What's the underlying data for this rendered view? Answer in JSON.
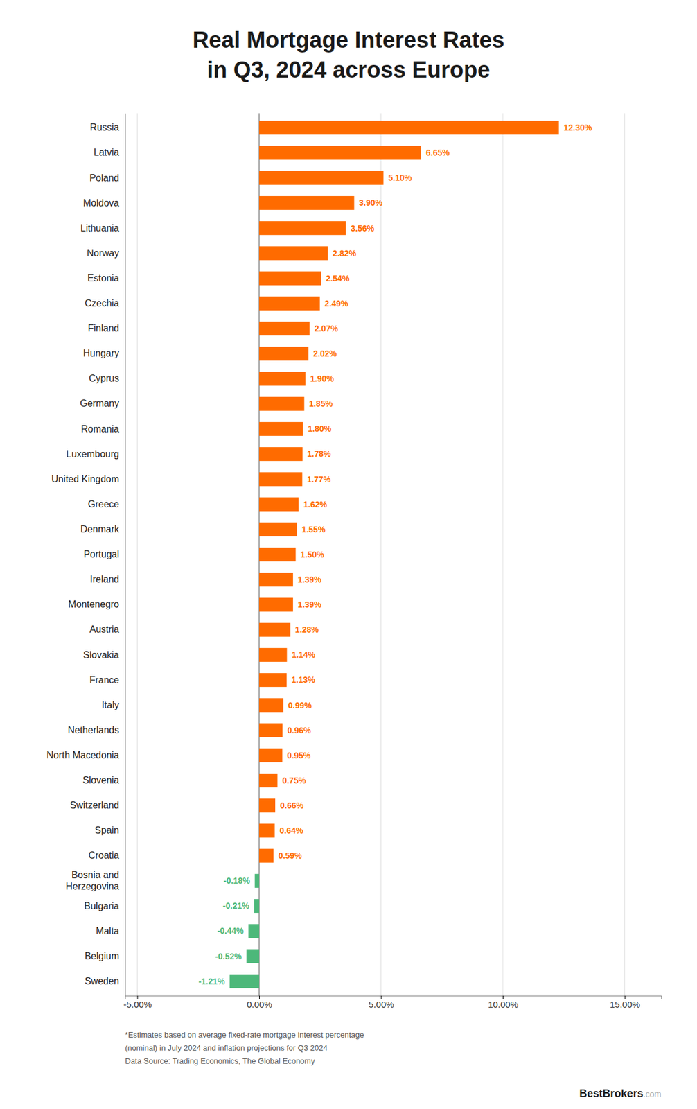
{
  "chart_data": {
    "type": "bar",
    "orientation": "horizontal",
    "title": "Real Mortgage Interest Rates",
    "subtitle": "in Q3, 2024 across Europe",
    "categories": [
      "Russia",
      "Latvia",
      "Poland",
      "Moldova",
      "Lithuania",
      "Norway",
      "Estonia",
      "Czechia",
      "Finland",
      "Hungary",
      "Cyprus",
      "Germany",
      "Romania",
      "Luxembourg",
      "United Kingdom",
      "Greece",
      "Denmark",
      "Portugal",
      "Ireland",
      "Montenegro",
      "Austria",
      "Slovakia",
      "France",
      "Italy",
      "Netherlands",
      "North Macedonia",
      "Slovenia",
      "Switzerland",
      "Spain",
      "Croatia",
      "Bosnia and\nHerzegovina",
      "Bulgaria",
      "Malta",
      "Belgium",
      "Sweden"
    ],
    "values": [
      12.3,
      6.65,
      5.1,
      3.9,
      3.56,
      2.82,
      2.54,
      2.49,
      2.07,
      2.02,
      1.9,
      1.85,
      1.8,
      1.78,
      1.77,
      1.62,
      1.55,
      1.5,
      1.39,
      1.39,
      1.28,
      1.14,
      1.13,
      0.99,
      0.96,
      0.95,
      0.75,
      0.66,
      0.64,
      0.59,
      -0.18,
      -0.21,
      -0.44,
      -0.52,
      -1.21
    ],
    "value_labels": [
      "12.30%",
      "6.65%",
      "5.10%",
      "3.90%",
      "3.56%",
      "2.82%",
      "2.54%",
      "2.49%",
      "2.07%",
      "2.02%",
      "1.90%",
      "1.85%",
      "1.80%",
      "1.78%",
      "1.77%",
      "1.62%",
      "1.55%",
      "1.50%",
      "1.39%",
      "1.39%",
      "1.28%",
      "1.14%",
      "1.13%",
      "0.99%",
      "0.96%",
      "0.95%",
      "0.75%",
      "0.66%",
      "0.64%",
      "0.59%",
      "-0.18%",
      "-0.21%",
      "-0.44%",
      "-0.52%",
      "-1.21%"
    ],
    "colors": [
      "#FF6B00",
      "#FF6B00",
      "#FF6B00",
      "#FF6B00",
      "#FF6B00",
      "#FF6B00",
      "#FF6B00",
      "#FF6B00",
      "#FF6B00",
      "#FF6B00",
      "#FF6B00",
      "#FF6B00",
      "#FF6B00",
      "#FF6B00",
      "#FF6B00",
      "#FF6B00",
      "#FF6B00",
      "#FF6B00",
      "#FF6B00",
      "#FF6B00",
      "#FF6B00",
      "#FF6B00",
      "#FF6B00",
      "#FF6B00",
      "#FF6B00",
      "#FF6B00",
      "#FF6B00",
      "#FF6B00",
      "#FF6B00",
      "#FF6B00",
      "#4DB87A",
      "#4DB87A",
      "#4DB87A",
      "#4DB87A",
      "#4DB87A"
    ],
    "data_labels": true,
    "xlim": [
      -5.5,
      16.5
    ],
    "xticks": [
      {
        "value": -5,
        "label": "-5.00%"
      },
      {
        "value": 0,
        "label": "0.00%"
      },
      {
        "value": 5,
        "label": "5.00%"
      },
      {
        "value": 10,
        "label": "10.00%"
      },
      {
        "value": 15,
        "label": "15.00%"
      }
    ],
    "grid": true,
    "annotations": [
      "*Estimates based on average fixed-rate mortgage interest percentage",
      "(nominal) in July 2024 and inflation projections for Q3 2024",
      "Data Source: Trading Economics, The Global Economy",
      "BestBrokers",
      ".com"
    ]
  }
}
